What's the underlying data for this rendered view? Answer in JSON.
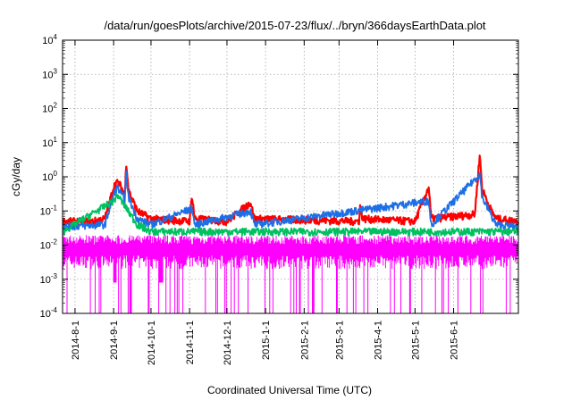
{
  "chart_data": {
    "type": "line",
    "title": "/data/run/goesPlots/archive/2015-07-23/flux/../bryn/366daysEarthData.plot",
    "xlabel": "Coordinated Universal Time (UTC)",
    "ylabel": "cGy/day",
    "scale": {
      "y": "log"
    },
    "ylim": [
      0.0001,
      10000
    ],
    "xlim": [
      "2014-07-22",
      "2015-07-23"
    ],
    "grid": true,
    "y_ticks": [
      {
        "base": "10",
        "exp": "-4",
        "value": 0.0001
      },
      {
        "base": "10",
        "exp": "-3",
        "value": 0.001
      },
      {
        "base": "10",
        "exp": "-2",
        "value": 0.01
      },
      {
        "base": "10",
        "exp": "-1",
        "value": 0.1
      },
      {
        "base": "10",
        "exp": "0",
        "value": 1
      },
      {
        "base": "10",
        "exp": "1",
        "value": 10
      },
      {
        "base": "10",
        "exp": "2",
        "value": 100
      },
      {
        "base": "10",
        "exp": "3",
        "value": 1000
      },
      {
        "base": "10",
        "exp": "4",
        "value": 10000
      }
    ],
    "x_ticks": [
      {
        "label": "2014-8-1",
        "date": "2014-08-01"
      },
      {
        "label": "2014-9-1",
        "date": "2014-09-01"
      },
      {
        "label": "2014-10-1",
        "date": "2014-10-01"
      },
      {
        "label": "2014-11-1",
        "date": "2014-11-01"
      },
      {
        "label": "2014-12-1",
        "date": "2014-12-01"
      },
      {
        "label": "2015-1-1",
        "date": "2015-01-01"
      },
      {
        "label": "2015-2-1",
        "date": "2015-02-01"
      },
      {
        "label": "2015-3-1",
        "date": "2015-03-01"
      },
      {
        "label": "2015-4-1",
        "date": "2015-04-01"
      },
      {
        "label": "2015-5-1",
        "date": "2015-05-01"
      },
      {
        "label": "2015-6-1",
        "date": "2015-06-01"
      }
    ],
    "series": [
      {
        "color": "#ff0000",
        "points": [
          [
            "2014-07-22",
            0.05
          ],
          [
            "2014-08-15",
            0.05
          ],
          [
            "2014-08-25",
            0.06
          ],
          [
            "2014-09-01",
            0.5
          ],
          [
            "2014-09-03",
            0.7
          ],
          [
            "2014-09-06",
            0.6
          ],
          [
            "2014-09-10",
            0.3
          ],
          [
            "2014-09-11",
            3.0
          ],
          [
            "2014-09-13",
            0.4
          ],
          [
            "2014-09-20",
            0.1
          ],
          [
            "2014-10-01",
            0.06
          ],
          [
            "2014-11-01",
            0.05
          ],
          [
            "2014-11-03",
            0.3
          ],
          [
            "2014-11-05",
            0.06
          ],
          [
            "2014-12-01",
            0.05
          ],
          [
            "2014-12-20",
            0.18
          ],
          [
            "2014-12-23",
            0.06
          ],
          [
            "2015-03-17",
            0.05
          ],
          [
            "2015-03-18",
            0.15
          ],
          [
            "2015-03-20",
            0.06
          ],
          [
            "2015-05-01",
            0.05
          ],
          [
            "2015-05-12",
            0.5
          ],
          [
            "2015-05-14",
            0.06
          ],
          [
            "2015-06-18",
            0.08
          ],
          [
            "2015-06-22",
            4.5
          ],
          [
            "2015-06-24",
            0.4
          ],
          [
            "2015-06-26",
            0.3
          ],
          [
            "2015-06-29",
            0.15
          ],
          [
            "2015-07-05",
            0.06
          ],
          [
            "2015-07-23",
            0.05
          ]
        ]
      },
      {
        "color": "#1e6fe6",
        "points": [
          [
            "2014-07-22",
            0.035
          ],
          [
            "2014-08-25",
            0.04
          ],
          [
            "2014-09-01",
            0.3
          ],
          [
            "2014-09-04",
            0.5
          ],
          [
            "2014-09-10",
            0.2
          ],
          [
            "2014-09-11",
            1.5
          ],
          [
            "2014-09-13",
            0.25
          ],
          [
            "2014-09-20",
            0.06
          ],
          [
            "2014-10-01",
            0.04
          ],
          [
            "2014-11-03",
            0.12
          ],
          [
            "2014-11-05",
            0.04
          ],
          [
            "2014-12-20",
            0.1
          ],
          [
            "2014-12-23",
            0.04
          ],
          [
            "2015-05-12",
            0.2
          ],
          [
            "2015-05-14",
            0.04
          ],
          [
            "2015-06-22",
            1.2
          ],
          [
            "2015-06-24",
            0.25
          ],
          [
            "2015-06-26",
            0.18
          ],
          [
            "2015-07-05",
            0.04
          ],
          [
            "2015-07-23",
            0.035
          ]
        ]
      },
      {
        "color": "#00c060",
        "points": [
          [
            "2014-07-22",
            0.025
          ],
          [
            "2014-09-01",
            0.2
          ],
          [
            "2014-09-04",
            0.3
          ],
          [
            "2014-09-20",
            0.04
          ],
          [
            "2014-10-01",
            0.025
          ],
          [
            "2015-07-23",
            0.025
          ]
        ]
      },
      {
        "color": "#ff00ff",
        "band_min": 0.002,
        "band_max": 0.015,
        "dropouts_to": 0.0001,
        "note_dates_of_gaps": [
          "2014-09-02",
          "2014-10-09"
        ]
      }
    ]
  }
}
